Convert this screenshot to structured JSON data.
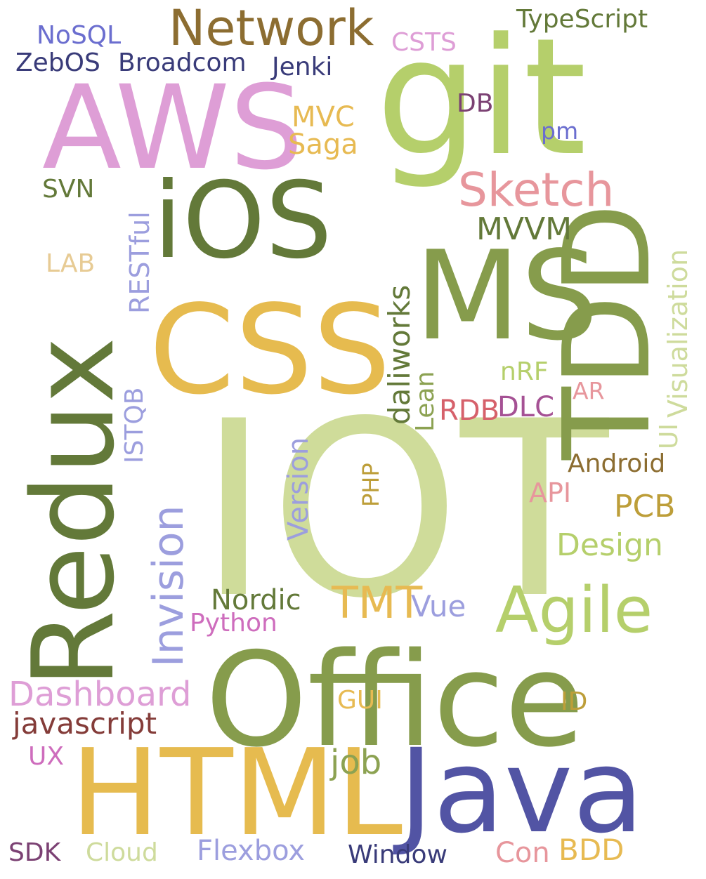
{
  "words": {
    "iot": {
      "text": "IOT",
      "color": "#cfdc9a"
    },
    "office": {
      "text": "Office",
      "color": "#869c4c"
    },
    "html": {
      "text": "HTML",
      "color": "#e6bb4f"
    },
    "java": {
      "text": "Java",
      "color": "#5254a4"
    },
    "css": {
      "text": "CSS",
      "color": "#e6bb4f"
    },
    "git": {
      "text": "git",
      "color": "#b5cf6b"
    },
    "aws": {
      "text": "AWS",
      "color": "#de9ed6"
    },
    "ios": {
      "text": "iOS",
      "color": "#637939"
    },
    "ms": {
      "text": "MS",
      "color": "#869c4c"
    },
    "redux": {
      "text": "Redux",
      "color": "#637939"
    },
    "tdd": {
      "text": "TDD",
      "color": "#869c4c"
    },
    "network": {
      "text": "Network",
      "color": "#8c6d31"
    },
    "agile": {
      "text": "Agile",
      "color": "#b5cf6b"
    },
    "sketch": {
      "text": "Sketch",
      "color": "#e7969c"
    },
    "invision": {
      "text": "Invision",
      "color": "#9c9ede"
    },
    "dashboard": {
      "text": "Dashboard",
      "color": "#de9ed6"
    },
    "javascript": {
      "text": "javascript",
      "color": "#843c39"
    },
    "design": {
      "text": "Design",
      "color": "#b5cf6b"
    },
    "daliworks": {
      "text": "daliworks",
      "color": "#637939"
    },
    "visualization": {
      "text": "Visualization",
      "color": "#cedb9c"
    },
    "typescript": {
      "text": "TypeScript",
      "color": "#637939"
    },
    "nosql": {
      "text": "NoSQL",
      "color": "#6b6ecf"
    },
    "csts": {
      "text": "CSTS",
      "color": "#de9ed6"
    },
    "zebos": {
      "text": "ZebOS",
      "color": "#393b79"
    },
    "broadcom": {
      "text": "Broadcom",
      "color": "#393b79"
    },
    "jenki": {
      "text": "Jenki",
      "color": "#393b79"
    },
    "mvc": {
      "text": "MVC",
      "color": "#e7ba52"
    },
    "saga": {
      "text": "Saga",
      "color": "#e7ba52"
    },
    "db": {
      "text": "DB",
      "color": "#7b4173"
    },
    "pm": {
      "text": "pm",
      "color": "#6b6ecf"
    },
    "svn": {
      "text": "SVN",
      "color": "#637939"
    },
    "restful": {
      "text": "RESTful",
      "color": "#9c9ede"
    },
    "mvvm": {
      "text": "MVVM",
      "color": "#637939"
    },
    "lab": {
      "text": "LAB",
      "color": "#e7cb94"
    },
    "lean": {
      "text": "Lean",
      "color": "#8ca252"
    },
    "nrf": {
      "text": "nRF",
      "color": "#b5cf6b"
    },
    "ar": {
      "text": "AR",
      "color": "#e7969c"
    },
    "rdb": {
      "text": "RDB",
      "color": "#d6616b"
    },
    "dlc": {
      "text": "DLC",
      "color": "#a55194"
    },
    "istqb": {
      "text": "ISTQB",
      "color": "#9c9ede"
    },
    "version": {
      "text": "Version",
      "color": "#9c9ede"
    },
    "ui": {
      "text": "UI",
      "color": "#cedb9c"
    },
    "android": {
      "text": "Android",
      "color": "#8c6d31"
    },
    "php": {
      "text": "PHP",
      "color": "#bd9e39"
    },
    "api": {
      "text": "API",
      "color": "#e7969c"
    },
    "pcb": {
      "text": "PCB",
      "color": "#bd9e39"
    },
    "tmt": {
      "text": "TMT",
      "color": "#e7ba52"
    },
    "nordic": {
      "text": "Nordic",
      "color": "#637939"
    },
    "vue": {
      "text": "Vue",
      "color": "#9c9ede"
    },
    "python": {
      "text": "Python",
      "color": "#ce6dbd"
    },
    "gui": {
      "text": "GUI",
      "color": "#e7ba52"
    },
    "id": {
      "text": "ID",
      "color": "#bd9e39"
    },
    "ux": {
      "text": "UX",
      "color": "#ce6dbd"
    },
    "job": {
      "text": "job",
      "color": "#8ca252"
    },
    "sdk": {
      "text": "SDK",
      "color": "#7b4173"
    },
    "cloud": {
      "text": "Cloud",
      "color": "#cedb9c"
    },
    "flexbox": {
      "text": "Flexbox",
      "color": "#9c9ede"
    },
    "window": {
      "text": "Window",
      "color": "#393b79"
    },
    "con": {
      "text": "Con",
      "color": "#e7969c"
    },
    "bdd": {
      "text": "BDD",
      "color": "#e7ba52"
    }
  }
}
